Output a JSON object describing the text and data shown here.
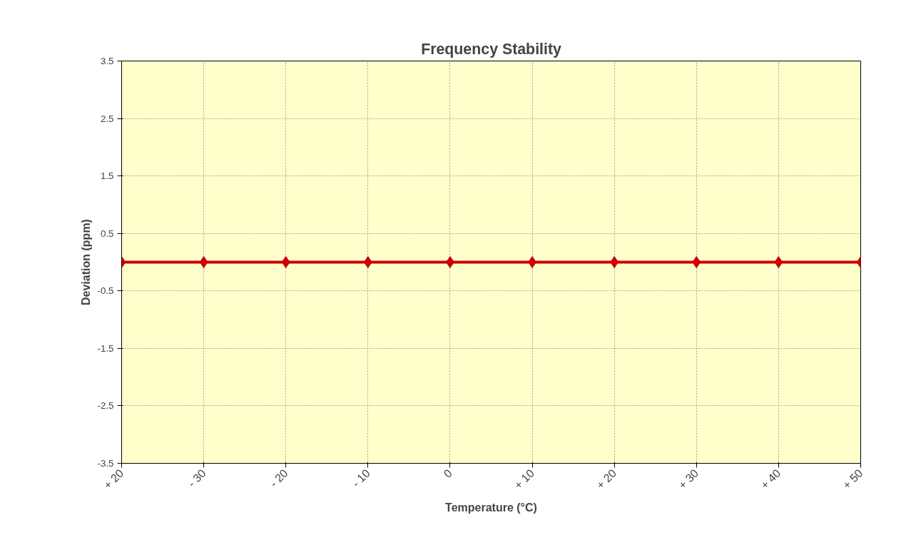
{
  "chart_data": {
    "type": "line",
    "title": "Frequency Stability",
    "xlabel": "Temperature (°C)",
    "ylabel": "Deviation (ppm)",
    "categories": [
      "+ 20",
      "- 30",
      "- 20",
      "- 10",
      "0",
      "+ 10",
      "+ 20",
      "+ 30",
      "+ 40",
      "+ 50"
    ],
    "series": [
      {
        "color": "#cc0000",
        "values": [
          0,
          0,
          0,
          0,
          0,
          0,
          0,
          0,
          0,
          0
        ]
      }
    ],
    "ylim": [
      -3.5,
      3.5
    ],
    "yticks": [
      -3.5,
      -2.5,
      -1.5,
      -0.5,
      0.5,
      1.5,
      2.5,
      3.5
    ],
    "grid": true,
    "marker": "diamond",
    "line_style": "solid"
  }
}
